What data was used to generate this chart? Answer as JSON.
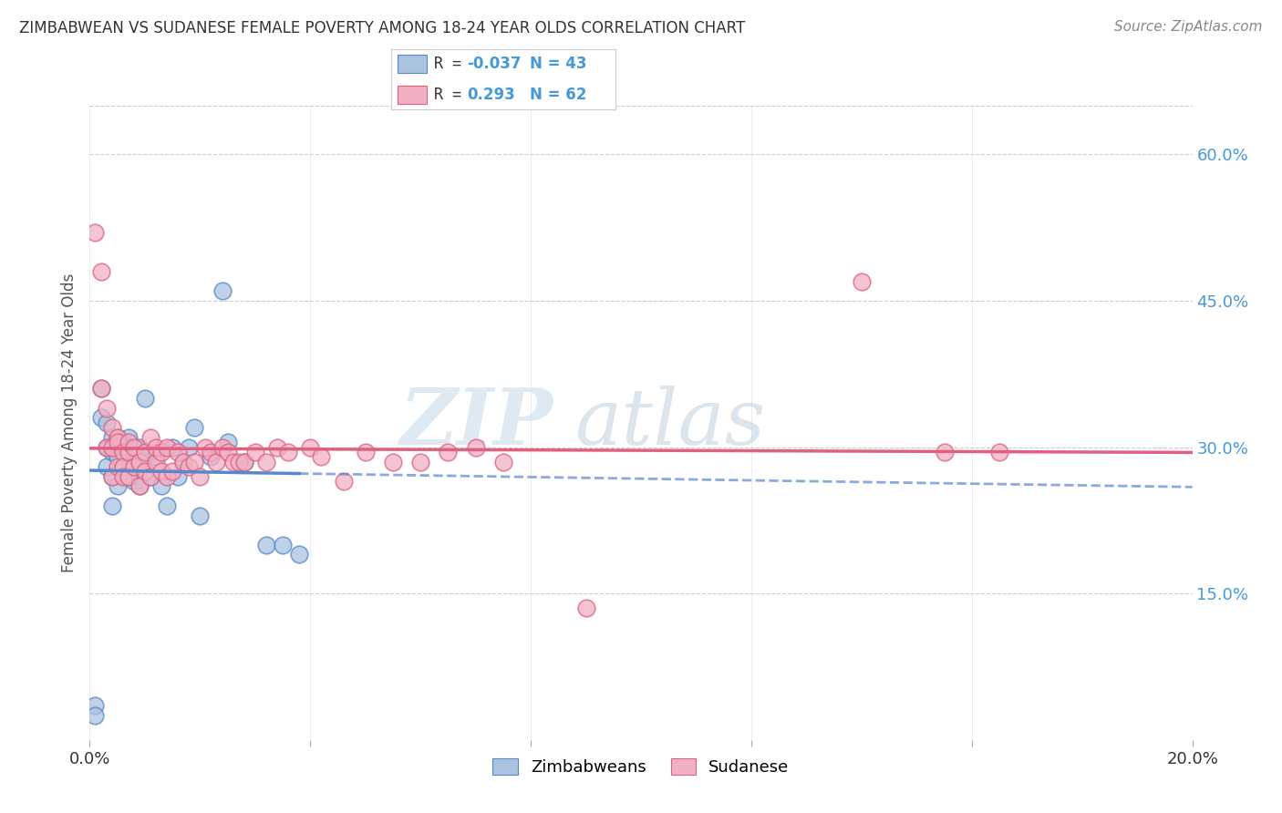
{
  "title": "ZIMBABWEAN VS SUDANESE FEMALE POVERTY AMONG 18-24 YEAR OLDS CORRELATION CHART",
  "source": "Source: ZipAtlas.com",
  "ylabel": "Female Poverty Among 18-24 Year Olds",
  "xlim": [
    0.0,
    0.2
  ],
  "ylim": [
    0.0,
    0.65
  ],
  "xticks": [
    0.0,
    0.04,
    0.08,
    0.12,
    0.16,
    0.2
  ],
  "yticks_right": [
    0.15,
    0.3,
    0.45,
    0.6
  ],
  "ytick_labels_right": [
    "15.0%",
    "30.0%",
    "45.0%",
    "60.0%"
  ],
  "grid_color": "#cccccc",
  "background_color": "#ffffff",
  "zim_color": "#aac4e0",
  "sud_color": "#f2b0c4",
  "zim_line_color": "#5588cc",
  "sud_line_color": "#e06080",
  "watermark": "ZIPatlas",
  "watermark_color": "#ccdde8",
  "legend_label_zim": "Zimbabweans",
  "legend_label_sud": "Sudanese",
  "zim_x": [
    0.001,
    0.001,
    0.002,
    0.002,
    0.003,
    0.003,
    0.003,
    0.004,
    0.004,
    0.004,
    0.004,
    0.005,
    0.005,
    0.005,
    0.005,
    0.006,
    0.006,
    0.007,
    0.007,
    0.007,
    0.008,
    0.008,
    0.009,
    0.009,
    0.01,
    0.01,
    0.011,
    0.012,
    0.013,
    0.014,
    0.015,
    0.016,
    0.017,
    0.018,
    0.019,
    0.02,
    0.022,
    0.024,
    0.025,
    0.028,
    0.032,
    0.035,
    0.038
  ],
  "zim_y": [
    0.035,
    0.025,
    0.33,
    0.36,
    0.3,
    0.28,
    0.325,
    0.295,
    0.31,
    0.27,
    0.24,
    0.3,
    0.29,
    0.31,
    0.26,
    0.305,
    0.28,
    0.31,
    0.27,
    0.3,
    0.28,
    0.265,
    0.3,
    0.26,
    0.29,
    0.35,
    0.27,
    0.29,
    0.26,
    0.24,
    0.3,
    0.27,
    0.285,
    0.3,
    0.32,
    0.23,
    0.29,
    0.46,
    0.305,
    0.285,
    0.2,
    0.2,
    0.19
  ],
  "sud_x": [
    0.001,
    0.002,
    0.002,
    0.003,
    0.003,
    0.004,
    0.004,
    0.004,
    0.005,
    0.005,
    0.005,
    0.006,
    0.006,
    0.006,
    0.007,
    0.007,
    0.007,
    0.008,
    0.008,
    0.009,
    0.009,
    0.01,
    0.01,
    0.011,
    0.011,
    0.012,
    0.012,
    0.013,
    0.013,
    0.014,
    0.014,
    0.015,
    0.016,
    0.017,
    0.018,
    0.019,
    0.02,
    0.021,
    0.022,
    0.023,
    0.024,
    0.025,
    0.026,
    0.027,
    0.028,
    0.03,
    0.032,
    0.034,
    0.036,
    0.04,
    0.042,
    0.046,
    0.05,
    0.055,
    0.06,
    0.065,
    0.07,
    0.075,
    0.09,
    0.14,
    0.155,
    0.165
  ],
  "sud_y": [
    0.52,
    0.48,
    0.36,
    0.3,
    0.34,
    0.32,
    0.3,
    0.27,
    0.31,
    0.305,
    0.28,
    0.295,
    0.28,
    0.27,
    0.295,
    0.27,
    0.305,
    0.28,
    0.3,
    0.285,
    0.26,
    0.275,
    0.295,
    0.27,
    0.31,
    0.285,
    0.3,
    0.275,
    0.295,
    0.27,
    0.3,
    0.275,
    0.295,
    0.285,
    0.28,
    0.285,
    0.27,
    0.3,
    0.295,
    0.285,
    0.3,
    0.295,
    0.285,
    0.285,
    0.285,
    0.295,
    0.285,
    0.3,
    0.295,
    0.3,
    0.29,
    0.265,
    0.295,
    0.285,
    0.285,
    0.295,
    0.3,
    0.285,
    0.135,
    0.47,
    0.295,
    0.295
  ]
}
